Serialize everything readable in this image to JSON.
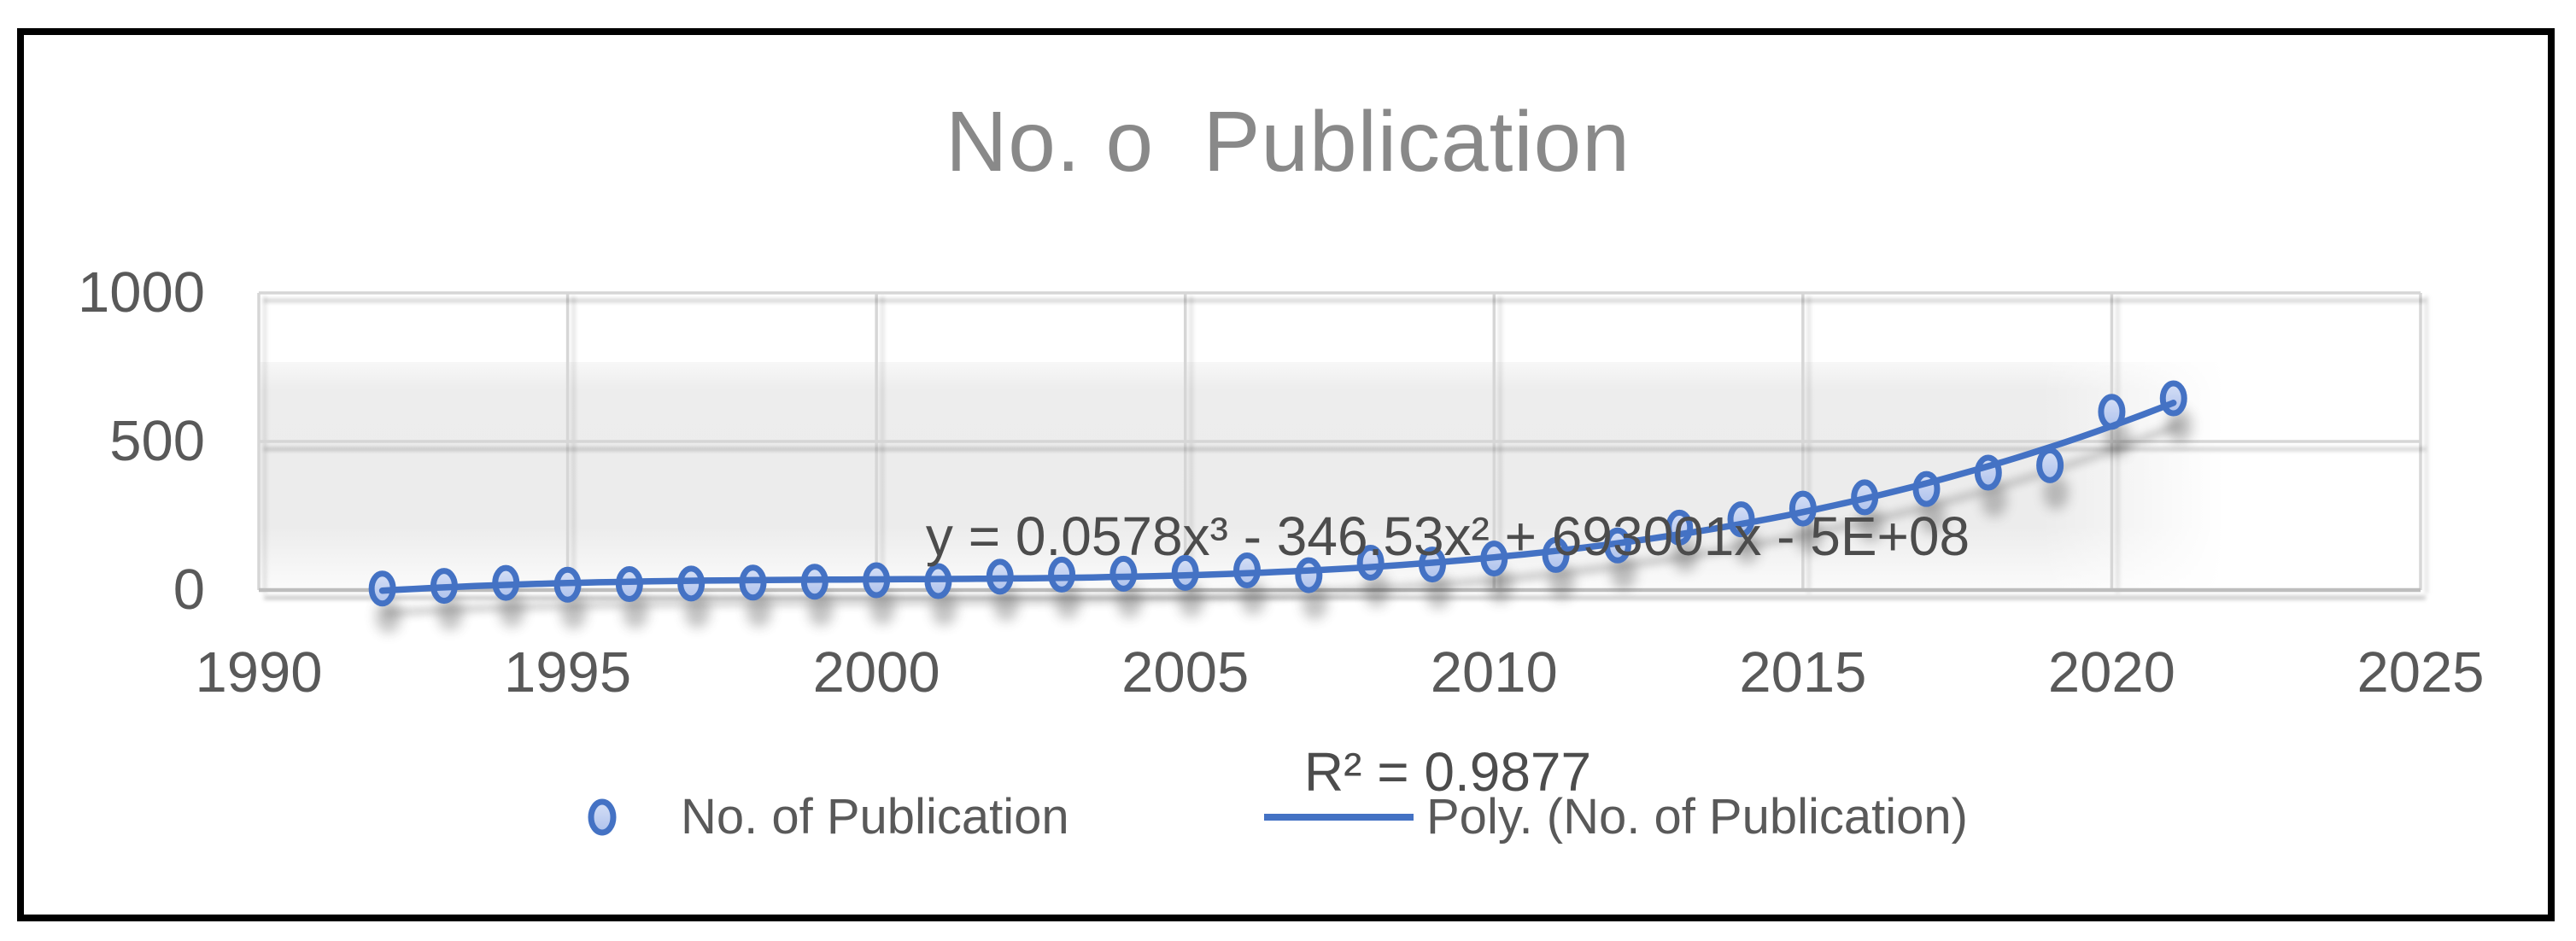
{
  "title": "No. o  Publication",
  "chart_data": {
    "type": "scatter",
    "title": "No. o  Publication",
    "series": [
      {
        "name": "No. of Publication",
        "marker": "circle",
        "x": [
          1992,
          1993,
          1994,
          1995,
          1996,
          1997,
          1998,
          1999,
          2000,
          2001,
          2002,
          2003,
          2004,
          2005,
          2006,
          2007,
          2008,
          2009,
          2010,
          2011,
          2012,
          2013,
          2014,
          2015,
          2016,
          2017,
          2018,
          2019,
          2020,
          2021
        ],
        "y": [
          5,
          14,
          24,
          18,
          20,
          22,
          25,
          28,
          33,
          30,
          45,
          52,
          55,
          58,
          66,
          50,
          92,
          86,
          106,
          118,
          150,
          210,
          238,
          274,
          312,
          340,
          395,
          420,
          600,
          645
        ]
      }
    ],
    "trendline": {
      "name": "Poly. (No. of Publication)",
      "type": "polynomial",
      "order": 3,
      "equation": "y = 0.0578x³ - 346.53x² + 693001x - 5E+08",
      "r_squared": "R² = 0.9877"
    },
    "x_axis": {
      "min": 1990,
      "max": 2025,
      "tick_interval": 5,
      "ticks": [
        1990,
        1995,
        2000,
        2005,
        2010,
        2015,
        2020,
        2025
      ]
    },
    "y_axis": {
      "min": 0,
      "max": 1000,
      "tick_interval": 500,
      "ticks": [
        0,
        500,
        1000
      ]
    },
    "grid": true,
    "legend_position": "bottom"
  },
  "legend": {
    "items": [
      {
        "label": "No. of Publication",
        "marker": "circle"
      },
      {
        "label": "Poly. (No. of Publication)",
        "marker": "line"
      }
    ]
  },
  "colors": {
    "series_blue": "#4472C4",
    "marker_fill_top": "#d6e0f6",
    "marker_fill_bottom": "#aec2ec",
    "gridline": "#d6d6d6",
    "axis_line": "#bdbdbd",
    "plot_tint": "#ececec",
    "title_text": "#898989",
    "axis_text": "#595959",
    "equation_text": "#4c4c4c",
    "page_border": "#000000"
  }
}
